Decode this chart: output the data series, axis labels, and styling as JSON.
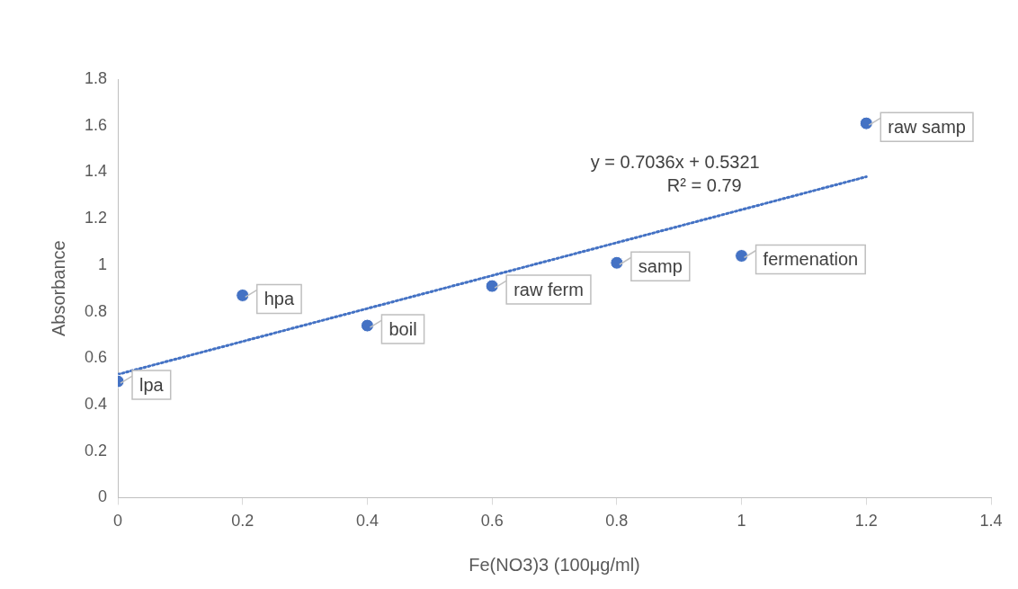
{
  "chart_data": {
    "type": "scatter",
    "xlabel": "Fe(NO3)3 (100μg/ml)",
    "ylabel": "Absorbance",
    "xlim": [
      0,
      1.4
    ],
    "xticks": [
      0,
      0.2,
      0.4,
      0.6,
      0.8,
      1,
      1.2,
      1.4
    ],
    "ylim": [
      0,
      1.8
    ],
    "yticks": [
      0,
      0.2,
      0.4,
      0.6,
      0.8,
      1,
      1.2,
      1.4,
      1.6,
      1.8
    ],
    "grid": false,
    "legend": false,
    "series": [
      {
        "color": "#4472c4",
        "marker": "circle",
        "x": [
          0,
          0.2,
          0.4,
          0.6,
          0.8,
          1,
          1.2
        ],
        "values": [
          0.5,
          0.87,
          0.74,
          0.91,
          1.01,
          1.04,
          1.61
        ]
      },
      {
        "type": "line",
        "color": "#4472c4",
        "line_style": "dotted",
        "marker": "none",
        "x": [
          0,
          1.2
        ],
        "values": [
          0.53,
          1.38
        ]
      }
    ],
    "annotations": [
      {
        "text": "lpa",
        "x": 0,
        "y": 0.5
      },
      {
        "text": "hpa",
        "x": 0.2,
        "y": 0.87
      },
      {
        "text": "boil",
        "x": 0.4,
        "y": 0.74
      },
      {
        "text": "raw ferm",
        "x": 0.6,
        "y": 0.91
      },
      {
        "text": "samp",
        "x": 0.8,
        "y": 1.01
      },
      {
        "text": "fermenation",
        "x": 1,
        "y": 1.04
      },
      {
        "text": "raw samp",
        "x": 1.2,
        "y": 1.61
      },
      "y = 0.7036x + 0.5321",
      "R² = 0.79"
    ]
  }
}
